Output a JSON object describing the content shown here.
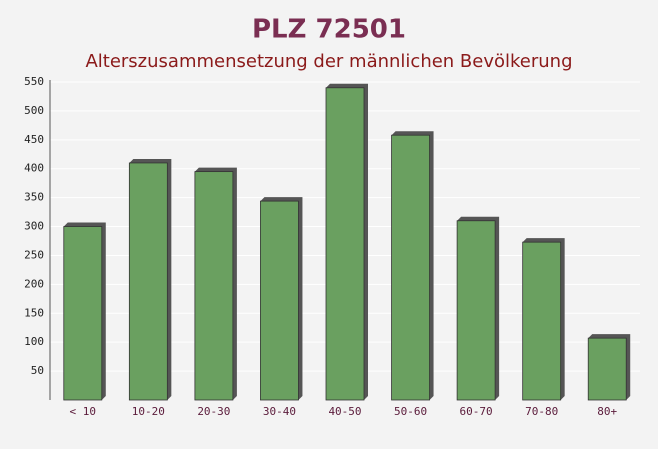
{
  "chart_data": {
    "type": "bar",
    "title": "PLZ 72501",
    "subtitle": "Alterszusammensetzung der männlichen Bevölkerung",
    "categories": [
      "< 10",
      "10-20",
      "20-30",
      "30-40",
      "40-50",
      "50-60",
      "60-70",
      "70-80",
      "80+"
    ],
    "values": [
      300,
      410,
      395,
      344,
      540,
      458,
      310,
      273,
      107
    ],
    "color": "#6aa060",
    "ylim": [
      0,
      550
    ],
    "yticks": [
      50,
      100,
      150,
      200,
      250,
      300,
      350,
      400,
      450,
      500,
      550
    ],
    "grid": true
  }
}
